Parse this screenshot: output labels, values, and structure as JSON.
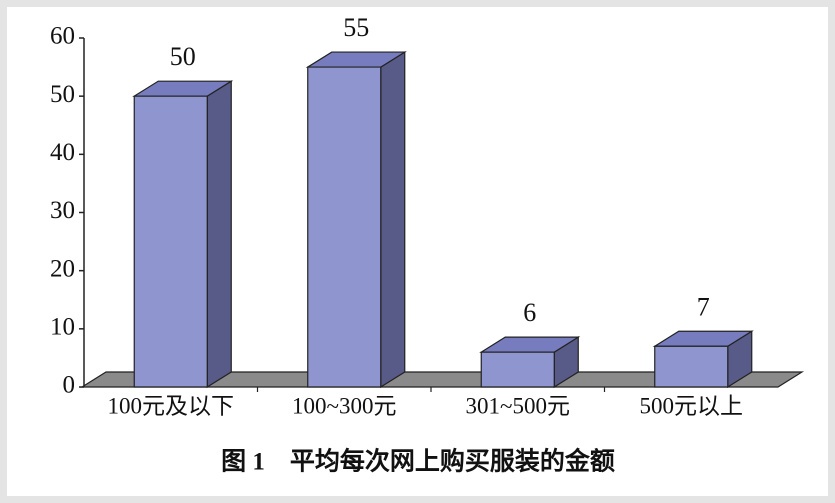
{
  "chart_data": {
    "type": "bar3d",
    "title": "图 1　平均每次网上购买服装的金额",
    "categories": [
      "100元及以下",
      "100~300元",
      "301~500元",
      "500元以上"
    ],
    "values": [
      50,
      55,
      6,
      7
    ],
    "colors": {
      "front": "#8f96cf",
      "side": "#585a87",
      "top": "#767cbd",
      "floor": "#8a8a8a"
    },
    "ylim": [
      0,
      60
    ],
    "yticks": [
      0,
      10,
      20,
      30,
      40,
      50,
      60
    ]
  }
}
